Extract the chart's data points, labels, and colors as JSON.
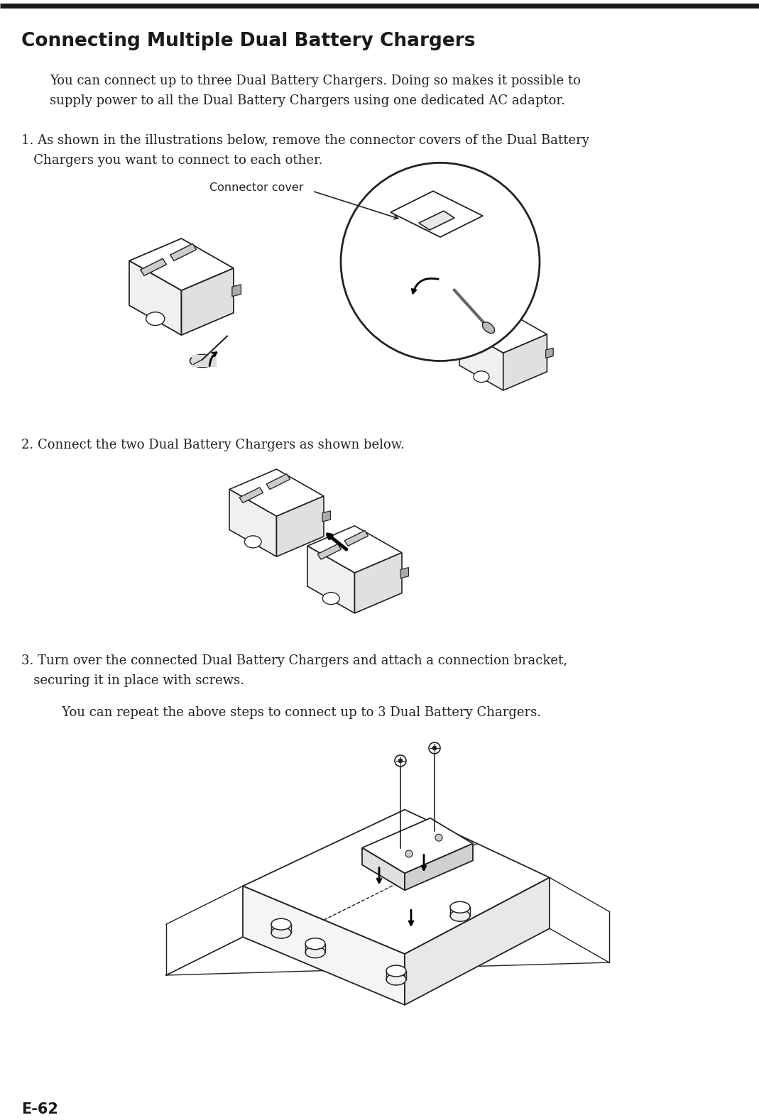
{
  "bg_color": "#ffffff",
  "border_top_color": "#1a1a1a",
  "title": "Connecting Multiple Dual Battery Chargers",
  "title_fontsize": 19,
  "body_text_color": "#222222",
  "body_fontsize": 13.0,
  "intro_line1": "You can connect up to three Dual Battery Chargers. Doing so makes it possible to",
  "intro_line2": "supply power to all the Dual Battery Chargers using one dedicated AC adaptor.",
  "step1_line1": "1. As shown in the illustrations below, remove the connector covers of the Dual Battery",
  "step1_line2": "   Chargers you want to connect to each other.",
  "step2_text": "2. Connect the two Dual Battery Chargers as shown below.",
  "step3_line1": "3. Turn over the connected Dual Battery Chargers and attach a connection bracket,",
  "step3_line2": "   securing it in place with screws.",
  "step3_line3": "   You can repeat the above steps to connect up to 3 Dual Battery Chargers.",
  "footer_text": "E-62"
}
